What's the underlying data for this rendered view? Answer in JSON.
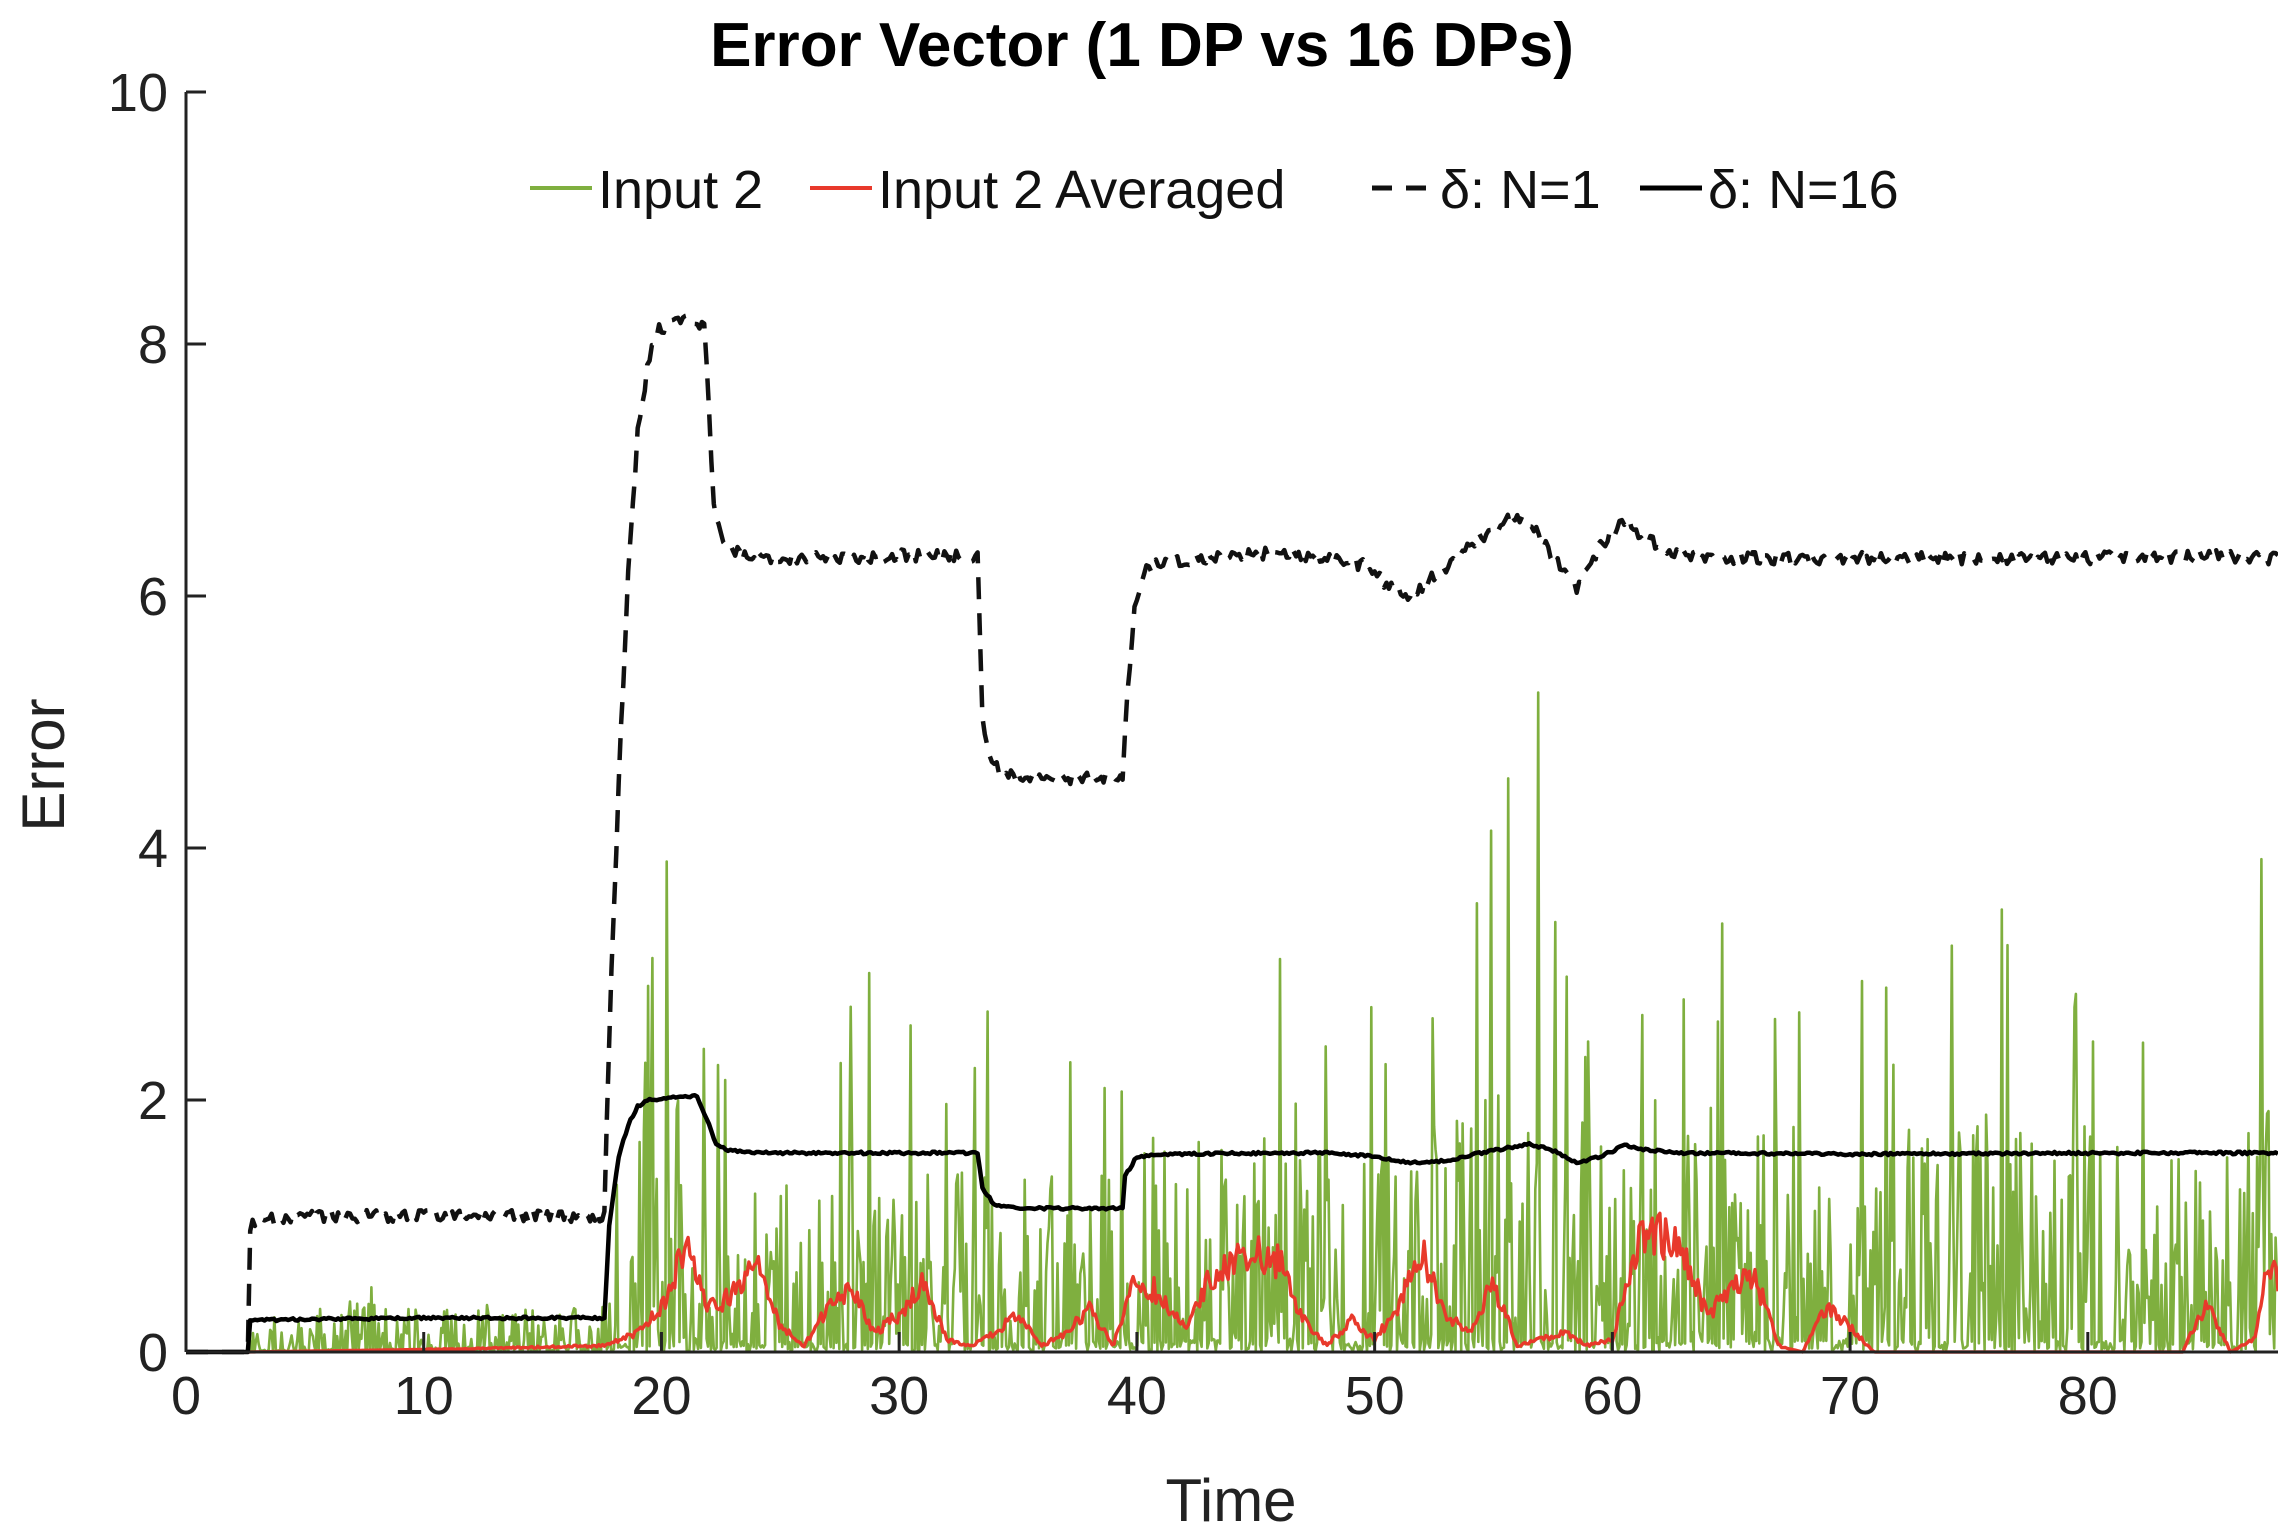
{
  "chart_data": {
    "type": "line",
    "title": "Error Vector (1 DP vs 16 DPs)",
    "xlabel": "Time",
    "ylabel": "Error",
    "xlim": [
      0,
      88
    ],
    "ylim": [
      0,
      10
    ],
    "xticks": [
      0,
      10,
      20,
      30,
      40,
      50,
      60,
      70,
      80
    ],
    "yticks": [
      0,
      2,
      4,
      6,
      8,
      10
    ],
    "grid": false,
    "legend": {
      "placement": "top",
      "orientation": "horizontal"
    },
    "series": [
      {
        "name": "Input 2",
        "color": "#7FAF3F",
        "style": "solid",
        "envelope": {
          "x": [
            0,
            2.5,
            3,
            6,
            9,
            12,
            15,
            17.6,
            18,
            19,
            20,
            21,
            22,
            24,
            26,
            28,
            30,
            32,
            34,
            36,
            38,
            40,
            42,
            44,
            46,
            48,
            50,
            52,
            54,
            56,
            57,
            58,
            60,
            62,
            64,
            66,
            68,
            70,
            72,
            74,
            76,
            78,
            80,
            82,
            84,
            86,
            87.5
          ],
          "ymax": [
            0,
            0,
            0.4,
            0.75,
            0.45,
            0.4,
            0.4,
            0.4,
            1.8,
            2.5,
            4.05,
            3.6,
            2.6,
            2.1,
            2.6,
            2.9,
            3.25,
            2.3,
            3.05,
            2.4,
            2.3,
            2.5,
            3.0,
            3.85,
            4.05,
            3.1,
            2.95,
            2.85,
            3.5,
            5.2,
            6.1,
            3.15,
            2.7,
            3.8,
            3.6,
            3.1,
            2.9,
            3.55,
            2.7,
            3.1,
            4.8,
            2.5,
            3.0,
            3.0,
            3.4,
            2.1,
            5.0
          ],
          "ymean": [
            0,
            0,
            0.12,
            0.15,
            0.13,
            0.12,
            0.12,
            0.13,
            0.5,
            0.75,
            0.8,
            0.8,
            0.7,
            0.55,
            0.55,
            0.6,
            0.6,
            0.55,
            0.5,
            0.5,
            0.55,
            0.6,
            0.7,
            0.75,
            0.75,
            0.7,
            0.65,
            0.65,
            0.7,
            0.75,
            0.8,
            0.7,
            0.65,
            0.8,
            0.75,
            0.7,
            0.65,
            0.65,
            0.65,
            0.65,
            0.7,
            0.6,
            0.65,
            0.65,
            0.65,
            0.6,
            0.7
          ]
        }
      },
      {
        "name": "Input 2 Averaged",
        "color": "#E8392B",
        "style": "solid",
        "x": [
          0,
          2.5,
          10,
          17.5,
          19,
          20,
          21,
          22,
          23,
          24,
          25,
          26,
          27,
          28,
          29,
          30,
          31,
          32,
          33,
          34,
          35,
          36,
          37,
          38,
          39,
          40,
          41,
          42,
          43,
          44,
          45,
          46,
          47,
          48,
          49,
          50,
          51,
          52,
          53,
          54,
          55,
          56,
          57,
          58,
          59,
          60,
          61,
          62,
          63,
          64,
          65,
          66,
          67,
          68,
          69,
          70,
          71,
          72,
          73,
          74,
          75,
          76,
          77,
          78,
          79,
          80,
          81,
          82,
          83,
          84,
          85,
          86,
          87,
          87.5
        ],
        "y": [
          0,
          0,
          0.02,
          0.05,
          0.15,
          0.35,
          0.85,
          0.35,
          0.45,
          0.7,
          0.2,
          0.05,
          0.35,
          0.5,
          0.15,
          0.3,
          0.55,
          0.1,
          0.05,
          0.15,
          0.3,
          0.05,
          0.15,
          0.35,
          0.05,
          0.6,
          0.45,
          0.2,
          0.55,
          0.75,
          0.8,
          0.7,
          0.25,
          0.05,
          0.25,
          0.1,
          0.35,
          0.8,
          0.3,
          0.15,
          0.55,
          0.05,
          0.1,
          0.15,
          0.05,
          0.1,
          0.85,
          0.95,
          0.75,
          0.3,
          0.5,
          0.6,
          0.05,
          0.0,
          0.35,
          0.2,
          0.0,
          0.0,
          0.0,
          0.0,
          0.0,
          0.0,
          0.0,
          0.0,
          0.0,
          0.0,
          0.0,
          0.0,
          0.0,
          0.0,
          0.4,
          0.0,
          0.1,
          0.6
        ]
      },
      {
        "name": "δ: N=1",
        "color": "#111111",
        "style": "dashed",
        "x": [
          0,
          2.6,
          2.7,
          3.0,
          4.0,
          6,
          10,
          15,
          17.6,
          17.8,
          18.2,
          18.6,
          19.0,
          19.4,
          19.8,
          20.3,
          21,
          21.8,
          22.0,
          22.2,
          22.6,
          23.0,
          24,
          26,
          30,
          33.3,
          33.5,
          33.8,
          34.3,
          35,
          37,
          39.4,
          39.6,
          39.9,
          40.3,
          41,
          43,
          46,
          48,
          49.5,
          50.5,
          51.5,
          52.5,
          54,
          55.5,
          56.5,
          57.5,
          58.5,
          59.5,
          60.5,
          61.5,
          62.5,
          65,
          70,
          75,
          80,
          85,
          87.5
        ],
        "y": [
          0,
          0,
          1.0,
          1.05,
          1.07,
          1.08,
          1.08,
          1.08,
          1.08,
          2.5,
          4.5,
          6.2,
          7.3,
          7.8,
          8.1,
          8.15,
          8.2,
          8.15,
          7.5,
          6.7,
          6.45,
          6.35,
          6.3,
          6.3,
          6.32,
          6.32,
          5.0,
          4.7,
          4.6,
          4.55,
          4.55,
          4.55,
          5.2,
          5.9,
          6.2,
          6.28,
          6.3,
          6.35,
          6.3,
          6.25,
          6.1,
          6.0,
          6.15,
          6.4,
          6.6,
          6.6,
          6.3,
          6.05,
          6.4,
          6.6,
          6.45,
          6.35,
          6.3,
          6.3,
          6.3,
          6.3,
          6.32,
          6.3
        ]
      },
      {
        "name": "δ: N=16",
        "color": "#000000",
        "style": "solid",
        "x": [
          0,
          2.6,
          2.7,
          5,
          10,
          15,
          17.6,
          17.8,
          18.2,
          18.6,
          19.0,
          19.5,
          20.3,
          21.5,
          22.0,
          22.3,
          22.8,
          24,
          30,
          33.3,
          33.5,
          34.0,
          35,
          39.4,
          39.5,
          40.0,
          41,
          46,
          48,
          50,
          51.5,
          53,
          55,
          56.5,
          57.5,
          58.5,
          59.5,
          60.5,
          61.5,
          63,
          70,
          80,
          87.5
        ],
        "y": [
          0,
          0,
          0.25,
          0.26,
          0.27,
          0.27,
          0.27,
          1.0,
          1.55,
          1.8,
          1.95,
          2.0,
          2.02,
          2.03,
          1.8,
          1.65,
          1.6,
          1.58,
          1.58,
          1.58,
          1.3,
          1.17,
          1.14,
          1.14,
          1.4,
          1.55,
          1.57,
          1.58,
          1.58,
          1.55,
          1.5,
          1.52,
          1.6,
          1.65,
          1.6,
          1.5,
          1.55,
          1.64,
          1.6,
          1.58,
          1.57,
          1.58,
          1.58
        ]
      }
    ]
  }
}
